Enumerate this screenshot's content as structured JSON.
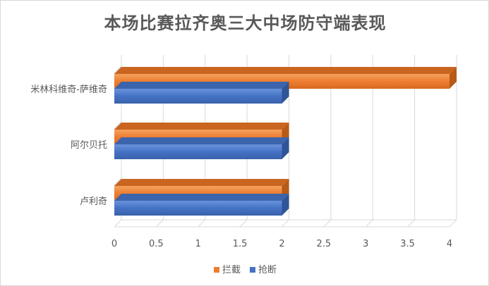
{
  "chart_data": {
    "type": "bar",
    "orientation": "horizontal",
    "title": "本场比赛拉齐奥三大中场防守端表现",
    "categories": [
      "米林科维奇-萨维奇",
      "阿尔贝托",
      "卢利奇"
    ],
    "series": [
      {
        "name": "拦截",
        "values": [
          4,
          2,
          2
        ],
        "color": "#ed7d31"
      },
      {
        "name": "抢断",
        "values": [
          2,
          2,
          2
        ],
        "color": "#4472c4"
      }
    ],
    "xlim": [
      0,
      4
    ],
    "xticks": [
      "0",
      "0.5",
      "1",
      "1.5",
      "2",
      "2.5",
      "3",
      "3.5",
      "4"
    ],
    "grid": true,
    "legend_position": "bottom"
  }
}
